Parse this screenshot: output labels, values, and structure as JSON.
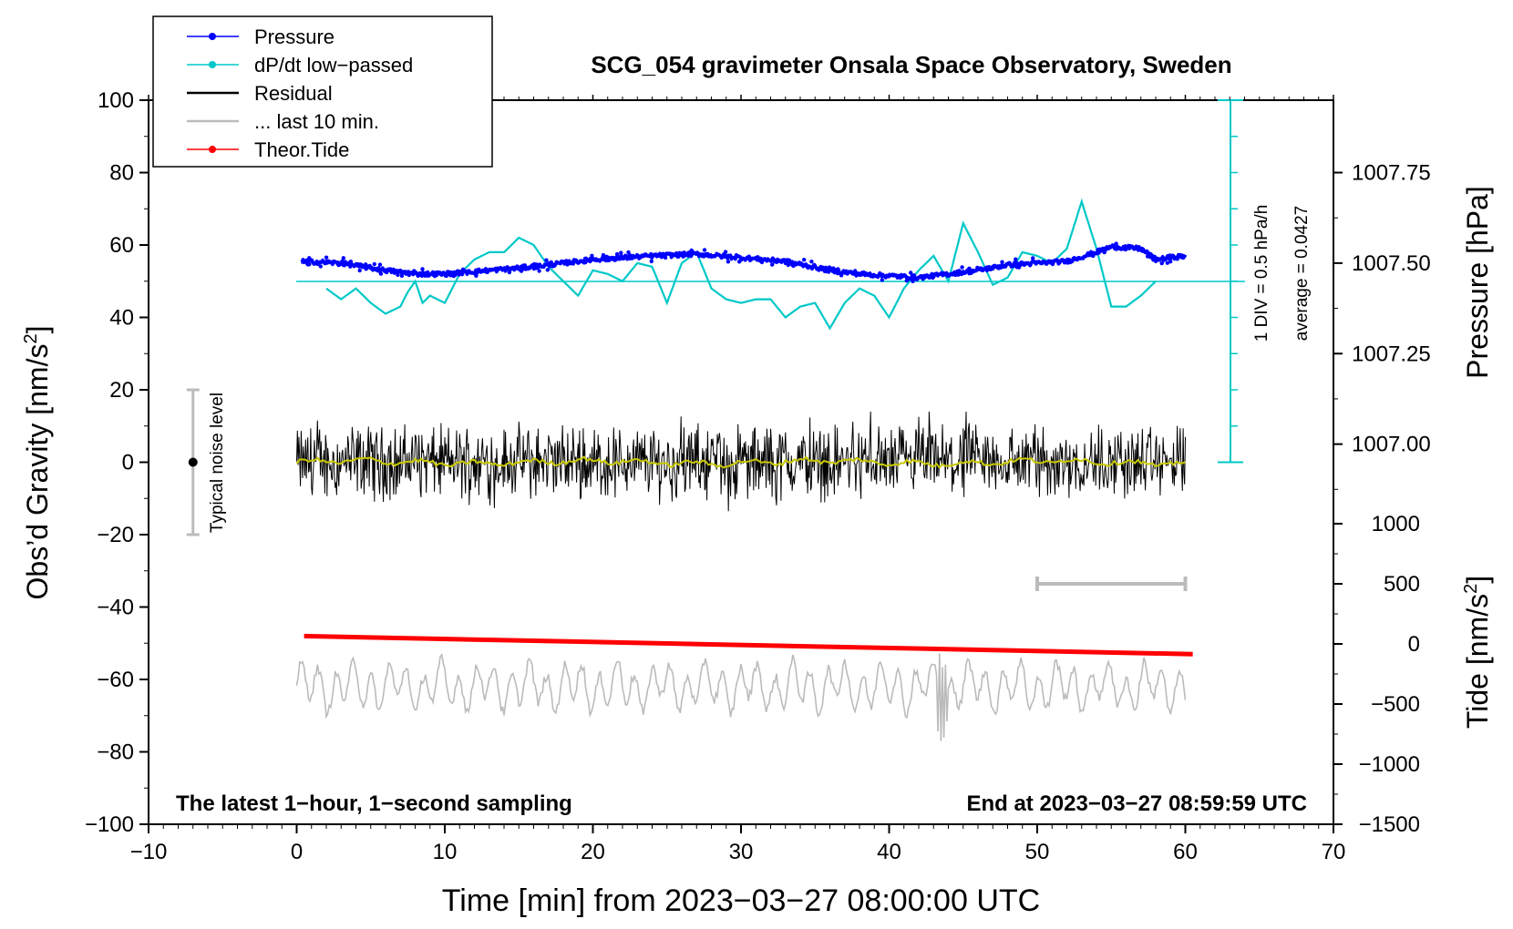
{
  "chart_data": {
    "type": "line",
    "title": "SCG_054 gravimeter Onsala Space Observatory, Sweden",
    "xlabel": "Time [min] from 2023−03−27 08:00:00 UTC",
    "ylabel_left": "Obs’d Gravity [nm/s",
    "ylabel_left_sup": "2",
    "ylabel_left_close": "]",
    "ylabel_right_pressure": "Pressure [hPa]",
    "ylabel_right_tide": "Tide [nm/s",
    "ylabel_right_tide_sup": "2",
    "ylabel_right_tide_close": "]",
    "xlim": [
      -10,
      70
    ],
    "ylim": [
      -100,
      100
    ],
    "x_ticks": [
      "−10",
      "0",
      "10",
      "20",
      "30",
      "40",
      "50",
      "60",
      "70"
    ],
    "y_ticks": [
      "100",
      "80",
      "60",
      "40",
      "20",
      "0",
      "−20",
      "−40",
      "−60",
      "−80",
      "−100"
    ],
    "pressure_axis": {
      "range": [
        1006.75,
        1007.75
      ],
      "ticks": [
        "1007.75",
        "1007.50",
        "1007.25",
        "1007.00"
      ]
    },
    "tide_axis": {
      "range": [
        -1500,
        1000
      ],
      "ticks": [
        "1000",
        "500",
        "0",
        "−500",
        "−1000",
        "−1500"
      ]
    },
    "legend": [
      {
        "label": "Pressure",
        "color": "#0000ff",
        "marker": true
      },
      {
        "label": "dP/dt low−passed",
        "color": "#00c8c8",
        "marker": true
      },
      {
        "label": "Residual",
        "color": "#000000",
        "marker": false
      },
      {
        "label": "... last 10 min.",
        "color": "#bbbbbb",
        "marker": false
      },
      {
        "label": "Theor.Tide",
        "color": "#ff0000",
        "marker": true
      }
    ],
    "noise_label": "Typical noise level",
    "noise_range": [
      -20,
      20
    ],
    "dpdt_scale_label": "1 DIV = 0.5 hPa/h",
    "dpdt_average_label": "average = 0.0427",
    "bottom_left_note": "The latest 1−hour, 1−second sampling",
    "bottom_right_note": "End at 2023−03−27 08:59:59 UTC",
    "last10_bar": [
      50,
      60
    ],
    "series": [
      {
        "name": "Pressure",
        "color": "#0000ff",
        "axis": "pressure",
        "x": [
          0.3,
          3,
          6,
          8,
          10,
          13,
          16,
          20,
          24,
          27,
          30,
          33,
          36,
          38,
          40,
          42,
          44,
          46,
          48,
          50,
          52,
          54,
          55,
          57,
          58,
          60
        ],
        "y": [
          1007.505,
          1007.5,
          1007.48,
          1007.47,
          1007.47,
          1007.48,
          1007.49,
          1007.51,
          1007.52,
          1007.525,
          1007.515,
          1007.505,
          1007.48,
          1007.47,
          1007.465,
          1007.46,
          1007.47,
          1007.48,
          1007.495,
          1007.5,
          1007.505,
          1007.53,
          1007.545,
          1007.54,
          1007.51,
          1007.52
        ]
      },
      {
        "name": "dP/dt low-passed",
        "color": "#00c8c8",
        "axis": "gravity",
        "x": [
          2,
          3,
          4,
          5,
          6,
          7,
          7.5,
          8,
          8.5,
          9,
          10,
          11,
          12,
          13,
          14,
          15,
          16,
          17,
          18,
          19,
          20,
          21,
          22,
          23,
          24,
          25,
          26,
          27,
          28,
          29,
          30,
          31,
          32,
          33,
          34,
          35,
          36,
          37,
          38,
          39,
          40,
          41,
          42,
          43,
          44,
          45,
          46,
          47,
          48,
          49,
          50,
          51,
          52,
          53,
          54,
          55,
          56,
          57,
          58
        ],
        "y": [
          48,
          45,
          48,
          44,
          41,
          43,
          47,
          50,
          44,
          46,
          44,
          52,
          56,
          58,
          58,
          62,
          60,
          54,
          50,
          46,
          53,
          52,
          50,
          55,
          54,
          44,
          55,
          58,
          48,
          45,
          44,
          45,
          45,
          40,
          43,
          44,
          37,
          44,
          48,
          46,
          40,
          48,
          53,
          57,
          50,
          66,
          58,
          49,
          51,
          58,
          57,
          55,
          59,
          72,
          59,
          43,
          43,
          46,
          50
        ]
      },
      {
        "name": "Residual",
        "color": "#000000",
        "axis": "gravity",
        "envelope": [
          -18,
          14
        ]
      },
      {
        "name": "... last 10 min.",
        "color": "#bbbbbb",
        "axis": "gravity",
        "center": -62,
        "envelope": [
          -77,
          -49
        ]
      },
      {
        "name": "Theor.Tide",
        "color": "#ff0000",
        "axis": "tide",
        "x": [
          0.5,
          60.5
        ],
        "y": [
          65,
          -85
        ]
      }
    ]
  }
}
